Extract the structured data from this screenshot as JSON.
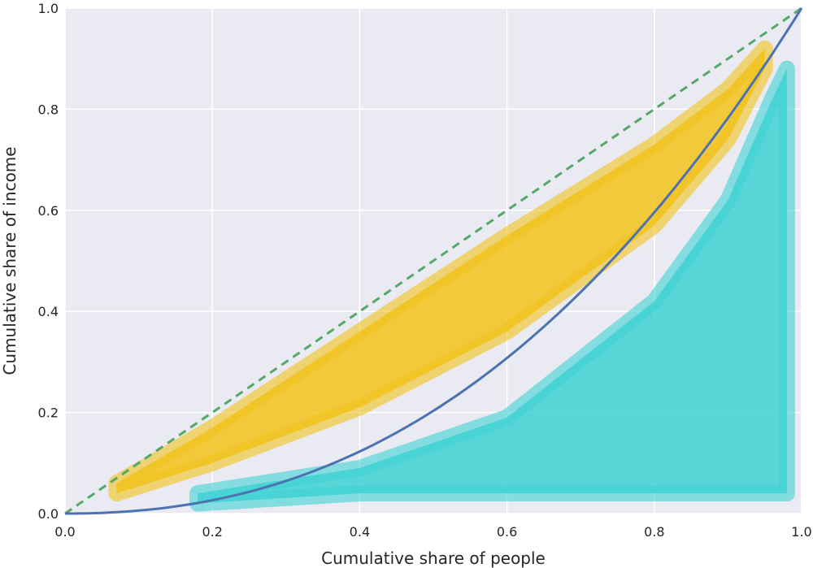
{
  "chart_data": {
    "type": "line",
    "title": "",
    "xlabel": "Cumulative share of people",
    "ylabel": "Cumulative share of income",
    "xlim": [
      0.0,
      1.0
    ],
    "ylim": [
      0.0,
      1.0
    ],
    "x_ticks": [
      "0.0",
      "0.2",
      "0.4",
      "0.6",
      "0.8",
      "1.0"
    ],
    "y_ticks": [
      "0.0",
      "0.2",
      "0.4",
      "0.6",
      "0.8",
      "1.0"
    ],
    "grid": true,
    "background_color": "#EAEAF2",
    "series": [
      {
        "style": "dashed-line",
        "color": "#55A868",
        "x": [
          0.0,
          1.0
        ],
        "y": [
          0.0,
          1.0
        ]
      },
      {
        "style": "solid-line",
        "color": "#4C72B0",
        "x": [
          0.0,
          0.1,
          0.2,
          0.3,
          0.4,
          0.5,
          0.6,
          0.7,
          0.8,
          0.9,
          1.0
        ],
        "y": [
          0.0,
          0.02,
          0.05,
          0.09,
          0.14,
          0.2,
          0.28,
          0.38,
          0.51,
          0.7,
          1.0
        ]
      },
      {
        "style": "filled-band",
        "color": "#F2C31A",
        "x": [
          0.07,
          0.2,
          0.4,
          0.6,
          0.8,
          0.9,
          0.95
        ],
        "y_upper": [
          0.06,
          0.17,
          0.36,
          0.55,
          0.73,
          0.84,
          0.92
        ],
        "y_lower": [
          0.04,
          0.1,
          0.21,
          0.36,
          0.57,
          0.74,
          0.88
        ]
      },
      {
        "style": "filled-band",
        "color": "#3ED2D2",
        "x": [
          0.18,
          0.4,
          0.6,
          0.8,
          0.9,
          0.96,
          0.98
        ],
        "y_upper": [
          0.04,
          0.09,
          0.19,
          0.42,
          0.62,
          0.82,
          0.88
        ],
        "y_lower": [
          0.02,
          0.04,
          0.04,
          0.04,
          0.04,
          0.04,
          0.04
        ]
      }
    ]
  }
}
